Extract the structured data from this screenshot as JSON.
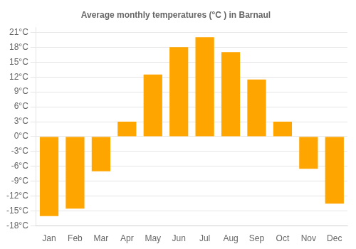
{
  "chart_data": {
    "type": "bar",
    "title": "Average monthly temperatures (°C ) in Barnaul",
    "categories": [
      "Jan",
      "Feb",
      "Mar",
      "Apr",
      "May",
      "Jun",
      "Jul",
      "Aug",
      "Sep",
      "Oct",
      "Nov",
      "Dec"
    ],
    "values": [
      -16.0,
      -14.5,
      -7.0,
      3.0,
      12.5,
      18.0,
      20.0,
      17.0,
      11.5,
      3.0,
      -6.5,
      -13.5
    ],
    "color": "#FFA500",
    "ylim": [
      -18,
      22
    ],
    "yticks": [
      {
        "value": -18,
        "label": "-18°C"
      },
      {
        "value": -15,
        "label": "-15°C"
      },
      {
        "value": -12,
        "label": "-12°C"
      },
      {
        "value": -9,
        "label": "-9°C"
      },
      {
        "value": -6,
        "label": "-6°C"
      },
      {
        "value": -3,
        "label": "-3°C"
      },
      {
        "value": 0,
        "label": "0°C"
      },
      {
        "value": 3,
        "label": "3°C"
      },
      {
        "value": 6,
        "label": "6°C"
      },
      {
        "value": 9,
        "label": "9°C"
      },
      {
        "value": 12,
        "label": "12°C"
      },
      {
        "value": 15,
        "label": "15°C"
      },
      {
        "value": 18,
        "label": "18°C"
      },
      {
        "value": 21,
        "label": "21°C"
      }
    ],
    "grid": true
  }
}
